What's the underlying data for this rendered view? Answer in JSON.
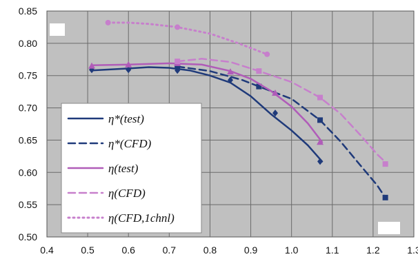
{
  "chart_data": {
    "type": "line",
    "title": "",
    "xlabel": "",
    "ylabel": "",
    "xlim": [
      0.4,
      1.3
    ],
    "ylim": [
      0.5,
      0.85
    ],
    "x_ticks": [
      "0.4",
      "0.5",
      "0.6",
      "0.7",
      "0.8",
      "0.9",
      "1.0",
      "1.1",
      "1.2",
      "1.3"
    ],
    "y_ticks": [
      "0.50",
      "0.55",
      "0.60",
      "0.65",
      "0.70",
      "0.75",
      "0.80",
      "0.85"
    ],
    "grid": true,
    "legend_position": "bottom-left",
    "background_color": "#c0c0c0",
    "series": [
      {
        "name": "η*(test)",
        "color": "#1f3a7a",
        "line_style": "solid",
        "marker": "diamond",
        "points": [
          [
            0.51,
            0.759
          ],
          [
            0.6,
            0.759
          ],
          [
            0.72,
            0.758
          ],
          [
            0.85,
            0.743
          ],
          [
            0.96,
            0.692
          ],
          [
            1.07,
            0.617
          ]
        ],
        "curve": [
          [
            0.51,
            0.758
          ],
          [
            0.6,
            0.761
          ],
          [
            0.65,
            0.763
          ],
          [
            0.7,
            0.762
          ],
          [
            0.75,
            0.758
          ],
          [
            0.8,
            0.75
          ],
          [
            0.85,
            0.739
          ],
          [
            0.9,
            0.718
          ],
          [
            0.95,
            0.69
          ],
          [
            1.0,
            0.665
          ],
          [
            1.04,
            0.642
          ],
          [
            1.075,
            0.617
          ]
        ]
      },
      {
        "name": "η*(CFD)",
        "color": "#1f3a7a",
        "line_style": "dashed",
        "marker": "square",
        "points": [
          [
            0.72,
            0.764
          ],
          [
            0.92,
            0.733
          ],
          [
            1.07,
            0.681
          ],
          [
            1.23,
            0.561
          ]
        ],
        "curve": [
          [
            0.72,
            0.764
          ],
          [
            0.8,
            0.757
          ],
          [
            0.88,
            0.743
          ],
          [
            0.92,
            0.733
          ],
          [
            1.0,
            0.714
          ],
          [
            1.07,
            0.681
          ],
          [
            1.12,
            0.648
          ],
          [
            1.17,
            0.61
          ],
          [
            1.21,
            0.58
          ],
          [
            1.23,
            0.561
          ]
        ]
      },
      {
        "name": "η(test)",
        "color": "#b05cb8",
        "line_style": "solid",
        "marker": "triangle",
        "points": [
          [
            0.51,
            0.765
          ],
          [
            0.6,
            0.767
          ],
          [
            0.72,
            0.769
          ],
          [
            0.85,
            0.756
          ],
          [
            0.96,
            0.723
          ],
          [
            1.07,
            0.647
          ]
        ],
        "curve": [
          [
            0.51,
            0.766
          ],
          [
            0.6,
            0.767
          ],
          [
            0.7,
            0.769
          ],
          [
            0.78,
            0.767
          ],
          [
            0.85,
            0.757
          ],
          [
            0.9,
            0.745
          ],
          [
            0.95,
            0.726
          ],
          [
            1.0,
            0.702
          ],
          [
            1.04,
            0.676
          ],
          [
            1.075,
            0.647
          ]
        ]
      },
      {
        "name": "η(CFD)",
        "color": "#c77fcc",
        "line_style": "dashed",
        "marker": "square",
        "points": [
          [
            0.72,
            0.772
          ],
          [
            0.92,
            0.757
          ],
          [
            1.07,
            0.716
          ],
          [
            1.23,
            0.613
          ]
        ],
        "curve": [
          [
            0.72,
            0.772
          ],
          [
            0.78,
            0.776
          ],
          [
            0.85,
            0.771
          ],
          [
            0.92,
            0.757
          ],
          [
            1.0,
            0.74
          ],
          [
            1.07,
            0.716
          ],
          [
            1.12,
            0.691
          ],
          [
            1.17,
            0.657
          ],
          [
            1.21,
            0.628
          ],
          [
            1.235,
            0.613
          ]
        ]
      },
      {
        "name": "η(CFD,1chnl)",
        "color": "#c77fcc",
        "line_style": "dotted",
        "marker": "circle",
        "points": [
          [
            0.55,
            0.832
          ],
          [
            0.72,
            0.825
          ],
          [
            0.94,
            0.783
          ]
        ],
        "curve": [
          [
            0.55,
            0.832
          ],
          [
            0.6,
            0.832
          ],
          [
            0.65,
            0.83
          ],
          [
            0.72,
            0.825
          ],
          [
            0.8,
            0.815
          ],
          [
            0.87,
            0.8
          ],
          [
            0.94,
            0.783
          ]
        ]
      }
    ]
  }
}
